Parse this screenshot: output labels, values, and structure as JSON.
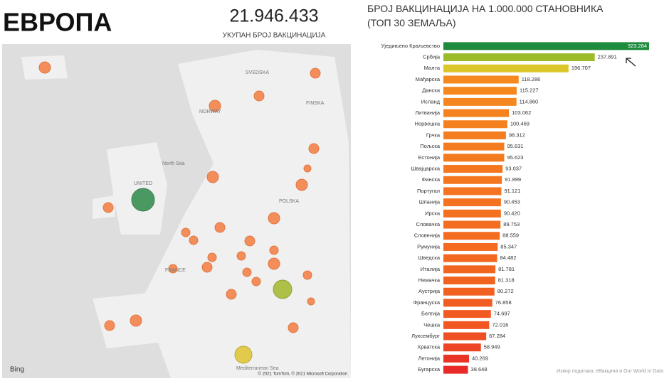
{
  "header": {
    "title": "ЕВРОПА"
  },
  "kpi": {
    "value": "21.946.433",
    "label": "УКУПАН БРОЈ ВАКЦИНАЦИЈА"
  },
  "map": {
    "labels": [
      "NORWAY",
      "SVEDSKA",
      "FINSKA",
      "North Sea",
      "UNITED",
      "FRANCE",
      "POLSKA",
      "Mediterranean Sea"
    ],
    "logo": "Bing",
    "copyright": "© 2021 TomTom, © 2021 Microsoft Corporation"
  },
  "chart_data": {
    "type": "bar",
    "orientation": "horizontal",
    "title": "БРОЈ ВАКЦИНАЦИЈА НА 1.000.000 СТАНОВНИКА (ТОП 30 ЗЕМАЉА)",
    "categories": [
      "Уједињено Краљевство",
      "Србија",
      "Малта",
      "Мађарска",
      "Данска",
      "Исланд",
      "Литванија",
      "Норвешка",
      "Грчка",
      "Пољска",
      "Естонија",
      "Швајцарска",
      "Финска",
      "Португал",
      "Шпанија",
      "Ирска",
      "Словачка",
      "Словенија",
      "Румунија",
      "Шведска",
      "Италија",
      "Немачка",
      "Аустрија",
      "Француска",
      "Белгија",
      "Чешка",
      "Луксембург",
      "Хрватска",
      "Летонија",
      "Бугарска"
    ],
    "values": [
      323284,
      237891,
      196707,
      118286,
      115227,
      114860,
      103062,
      100469,
      98312,
      95631,
      95623,
      93037,
      91899,
      91121,
      90453,
      90420,
      89753,
      88559,
      85347,
      84482,
      81781,
      81318,
      80272,
      76858,
      74697,
      72016,
      67284,
      58949,
      40269,
      38648
    ],
    "value_labels": [
      "323.284",
      "237.891",
      "196.707",
      "118.286",
      "115.227",
      "114.860",
      "103.062",
      "100.469",
      "98.312",
      "95.631",
      "95.623",
      "93.037",
      "91.899",
      "91.121",
      "90.453",
      "90.420",
      "89.753",
      "88.559",
      "85.347",
      "84.482",
      "81.781",
      "81.318",
      "80.272",
      "76.858",
      "74.697",
      "72.016",
      "67.284",
      "58.949",
      "40.269",
      "38.648"
    ],
    "colors": [
      "#1f8b3d",
      "#9cbb2b",
      "#dcc72b",
      "#f5891f",
      "#f5871f",
      "#f5861f",
      "#f5821f",
      "#f5801f",
      "#f47e1f",
      "#f47c1f",
      "#f47a1f",
      "#f4781f",
      "#f4761f",
      "#f4741f",
      "#f3721f",
      "#f3701f",
      "#f36e20",
      "#f36c20",
      "#f36a20",
      "#f26820",
      "#f26520",
      "#f26320",
      "#f26020",
      "#f15d21",
      "#f15a21",
      "#f05622",
      "#ee5023",
      "#ec4424",
      "#e93426",
      "#e82b28"
    ],
    "xlim": [
      0,
      323284
    ],
    "source": "Извор података: eВакцина и Our World in Data"
  }
}
